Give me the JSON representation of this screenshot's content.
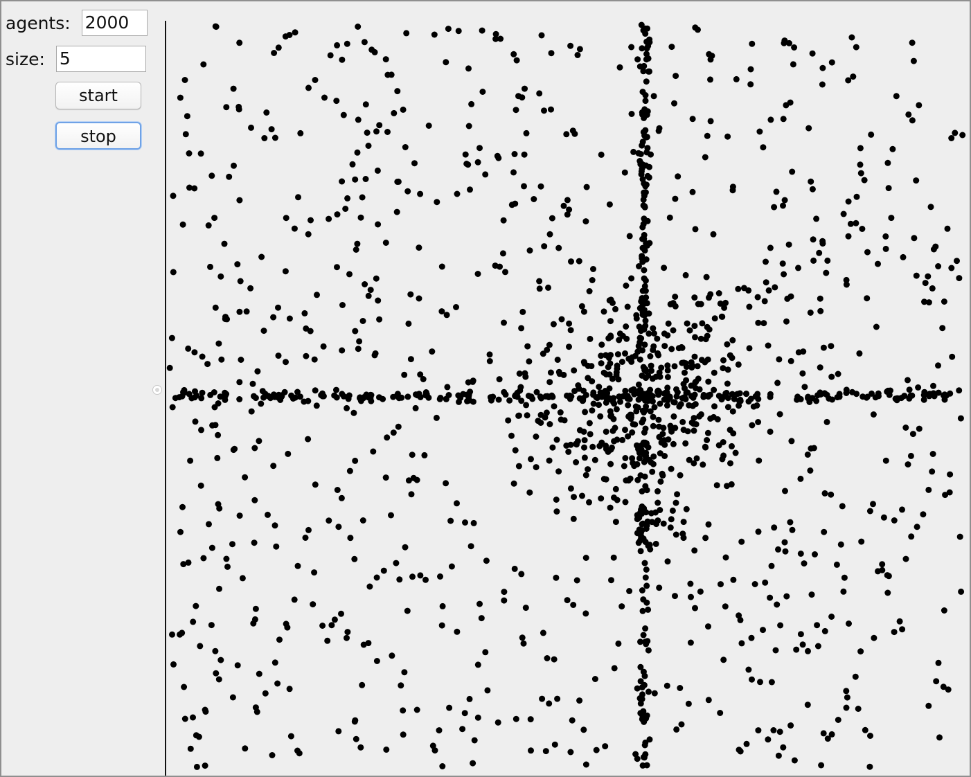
{
  "controls": {
    "agents_label": "agents:",
    "agents_value": "2000",
    "size_label": "size:",
    "size_value": "5",
    "start_label": "start",
    "stop_label": "stop"
  },
  "simulation": {
    "agent_count": 2000,
    "dot_color": "#000000",
    "background_color": "#eeeeee"
  }
}
